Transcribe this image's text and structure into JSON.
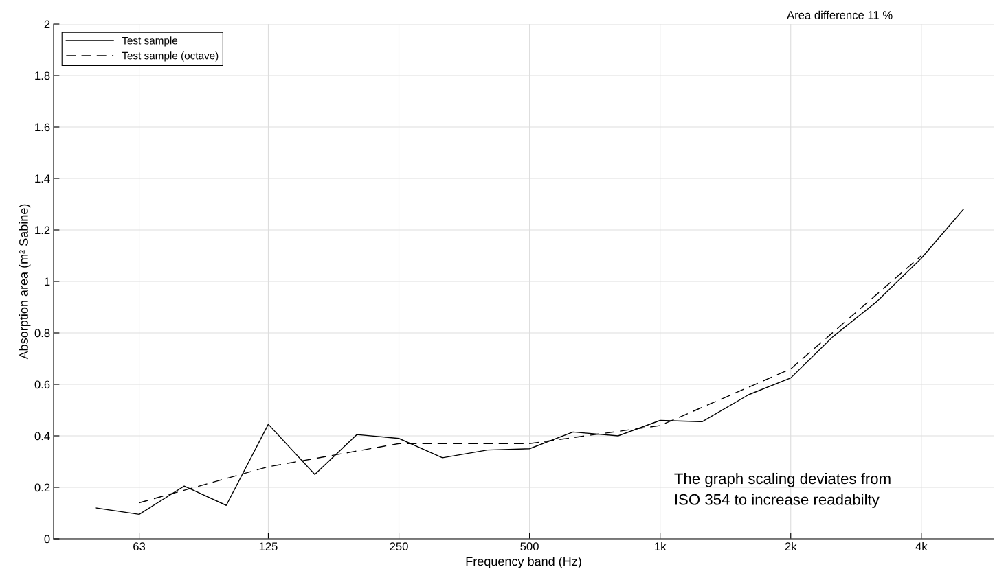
{
  "chart_data": {
    "type": "line",
    "xlabel": "Frequency band (Hz)",
    "ylabel": "Absorption area (m² Sabine)",
    "log": "x",
    "grid": true,
    "legend": "top left",
    "marker": "none",
    "xlim": [
      40,
      5870
    ],
    "ylim": [
      0,
      2
    ],
    "xticks": [
      63,
      125,
      250,
      500,
      {
        "value": 1000,
        "label": "1k"
      },
      {
        "value": 2000,
        "label": "2k"
      },
      {
        "value": 4000,
        "label": "4k"
      }
    ],
    "yticks": [
      0,
      0.2,
      0.4,
      0.6,
      0.8,
      1,
      1.2,
      1.4,
      1.6,
      1.8,
      2
    ],
    "series": [
      {
        "name": "Test sample",
        "color": "#000000",
        "line_style": "solid",
        "x": [
          50,
          63,
          80,
          100,
          125,
          160,
          200,
          250,
          315,
          400,
          500,
          630,
          800,
          1000,
          1250,
          1600,
          2000,
          2500,
          3150,
          4000,
          5000
        ],
        "values": [
          0.12,
          0.095,
          0.205,
          0.13,
          0.445,
          0.25,
          0.405,
          0.39,
          0.315,
          0.345,
          0.35,
          0.415,
          0.4,
          0.46,
          0.455,
          0.56,
          0.625,
          0.785,
          0.92,
          1.09,
          1.28
        ]
      },
      {
        "name": "Test sample (octave)",
        "color": "#000000",
        "line_style": "dashed",
        "x": [
          63,
          125,
          250,
          500,
          1000,
          2000,
          4000
        ],
        "values": [
          0.14,
          0.28,
          0.37,
          0.37,
          0.44,
          0.66,
          1.1
        ]
      }
    ],
    "annotations": [
      "Area difference 11 %",
      "The graph scaling deviates from\nISO 354 to increase readabilty"
    ]
  }
}
